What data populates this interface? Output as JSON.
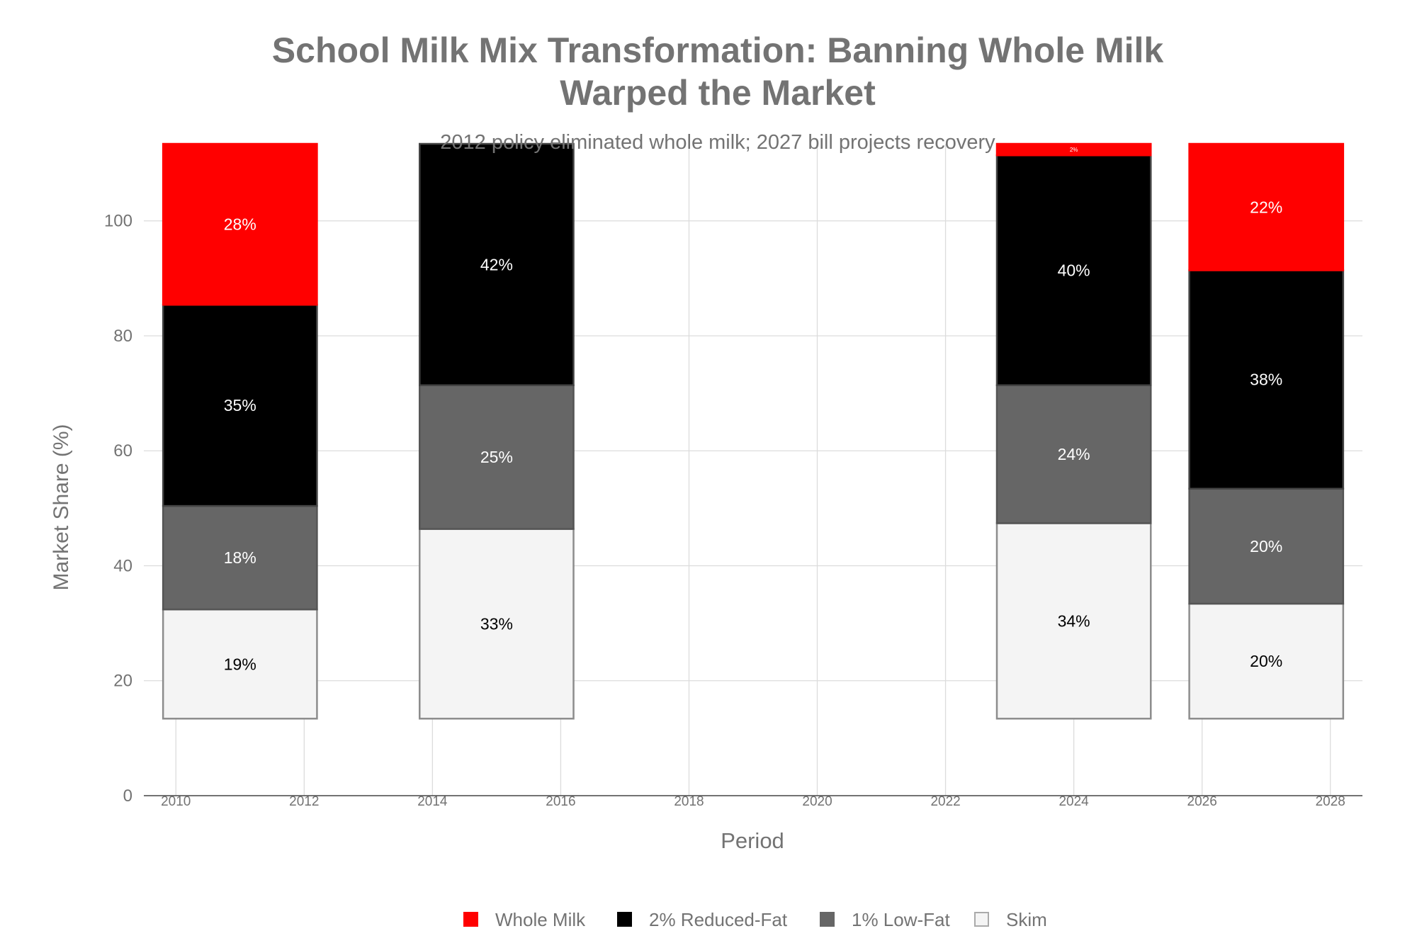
{
  "chart_data": {
    "type": "bar",
    "stacked": true,
    "title": "School Milk Mix Transformation: Banning Whole Milk Warped the Market",
    "title_lines": [
      "School Milk Mix Transformation: Banning Whole Milk",
      "Warped the Market"
    ],
    "subtitle": "2012 policy eliminated whole milk; 2027 bill projects recovery",
    "xlabel": "Period",
    "ylabel": "Market Share (%)",
    "x": [
      2011,
      2015,
      2024,
      2027
    ],
    "bar_width_years": 2.4,
    "base": 13.4,
    "xlim": [
      2009.5,
      2028.5
    ],
    "ylim": [
      0,
      113.4
    ],
    "xticks": [
      "2010",
      "2012",
      "2014",
      "2016",
      "2018",
      "2020",
      "2022",
      "2024",
      "2026",
      "2028"
    ],
    "yticks": [
      "0",
      "20",
      "40",
      "60",
      "80",
      "100"
    ],
    "grid": true,
    "legend_position": "bottom-center",
    "series": [
      {
        "name": "Skim",
        "color": "#f4f4f4",
        "border": "#8c8c8c",
        "label_color": "#000000",
        "values": [
          19,
          33,
          34,
          20
        ],
        "labels": [
          "19%",
          "33%",
          "34%",
          "20%"
        ]
      },
      {
        "name": "1% Low-Fat",
        "color": "#666666",
        "border": "#555555",
        "label_color": "#ffffff",
        "values": [
          18,
          25,
          24,
          20
        ],
        "labels": [
          "18%",
          "25%",
          "24%",
          "20%"
        ]
      },
      {
        "name": "2% Reduced-Fat",
        "color": "#000000",
        "border": "#444444",
        "label_color": "#ffffff",
        "values": [
          35,
          42,
          40,
          38
        ],
        "labels": [
          "35%",
          "42%",
          "40%",
          "38%"
        ]
      },
      {
        "name": "Whole Milk",
        "color": "#ff0000",
        "border": "#ff0000",
        "label_color": "#ffffff",
        "values": [
          28,
          0,
          2,
          22
        ],
        "labels": [
          "28%",
          "",
          "2%",
          "22%"
        ]
      }
    ],
    "legend_order": [
      "Whole Milk",
      "2% Reduced-Fat",
      "1% Low-Fat",
      "Skim"
    ]
  }
}
